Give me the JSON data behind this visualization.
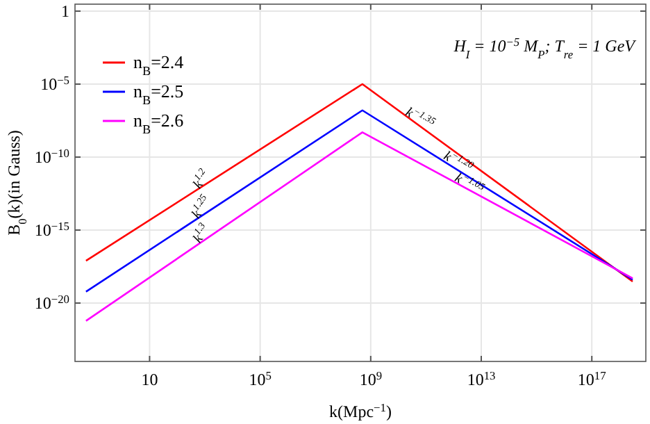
{
  "chart_data": {
    "type": "line",
    "xlabel": "k(Mpc$^{−1}$)",
    "ylabel": "B$_{0}$(k)(in Gauss)",
    "log": "xy",
    "grid": true,
    "legend": "top left",
    "line_style": "solid",
    "marker": "none",
    "xlim": [
      0.02,
      9e+18
    ],
    "ylim": [
      1e-24,
      3
    ],
    "xticks": [
      10,
      {
        "value": 100000.0,
        "label": "10$^{5}$"
      },
      {
        "value": 1000000000.0,
        "label": "10$^{9}$"
      },
      {
        "value": 10000000000000.0,
        "label": "10$^{13}$"
      },
      {
        "value": 1e+17,
        "label": "10$^{17}$"
      }
    ],
    "yticks": [
      1,
      {
        "value": 1e-05,
        "label": "10$^{−5}$"
      },
      {
        "value": 1e-10,
        "label": "10$^{−10}$"
      },
      {
        "value": 1e-15,
        "label": "10$^{−15}$"
      },
      {
        "value": 1e-20,
        "label": "10$^{−20}$"
      }
    ],
    "x": [
      0.05,
      500000000.0,
      3e+18
    ],
    "series": [
      {
        "name": "n$_{B}$=2.4",
        "color": "#ff0000",
        "values": [
          8e-18,
          1e-05,
          3e-19
        ]
      },
      {
        "name": "n$_{B}$=2.5",
        "color": "#0000ff",
        "values": [
          6e-20,
          1.6e-07,
          4e-19
        ]
      },
      {
        "name": "n$_{B}$=2.6",
        "color": "#ff00ff",
        "values": [
          6e-22,
          5e-09,
          5e-19
        ]
      }
    ],
    "annotations": [
      "H$_{I}$ = 10$^{−5}$ M$_{P}$; T$_{re}$ = 1 GeV",
      {
        "text": "k$^{1.2}$",
        "x": 1000,
        "y": 1.3e-12
      },
      {
        "text": "k$^{1.25}$",
        "x": 1000,
        "y": 1.6e-14
      },
      {
        "text": "k$^{1.3}$",
        "x": 1000,
        "y": 2.5e-16
      },
      {
        "text": "k$^{−1.35}$",
        "x": 50000000000.0,
        "y": 1.6e-08
      },
      {
        "text": "k$^{−1.20}$",
        "x": 1200000000000.0,
        "y": 1.6e-11
      },
      {
        "text": "k$^{−1.05}$",
        "x": 3000000000000.0,
        "y": 5e-13
      }
    ]
  }
}
